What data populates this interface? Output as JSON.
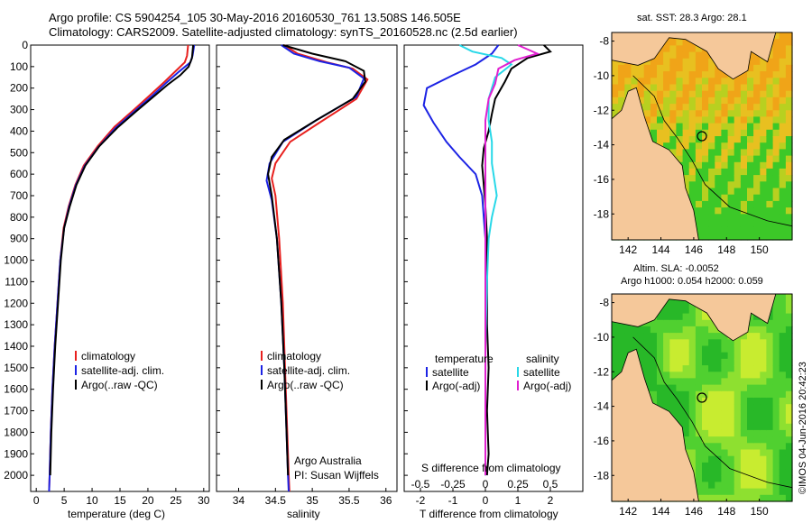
{
  "header": {
    "line1": "Argo profile: CS 5904254_105 30-May-2016 20160530_761 13.508S 146.505E",
    "line2": "Climatology: CARS2009. Satellite-adjusted climatology: synTS_20160528.nc (2.5d earlier)"
  },
  "colors": {
    "climatology": "#e8201e",
    "satellite": "#1c23e4",
    "argo": "#000000",
    "sat_s": "#28d8e8",
    "argo_s": "#e020d0",
    "land": "#f5c89a"
  },
  "chart_data": [
    {
      "type": "line",
      "xlabel": "temperature (deg C)",
      "xlim": [
        -1,
        31
      ],
      "xticks": [
        0,
        5,
        10,
        15,
        20,
        25,
        30
      ],
      "ylim": [
        2075,
        0
      ],
      "yticks": [
        0,
        100,
        200,
        300,
        400,
        500,
        600,
        700,
        800,
        900,
        1000,
        1100,
        1200,
        1300,
        1400,
        1500,
        1600,
        1700,
        1800,
        1900,
        2000
      ],
      "legend": [
        "climatology",
        "satellite-adj. clim.",
        "Argo(..raw -QC)"
      ],
      "legend_colors": [
        "#e8201e",
        "#1c23e4",
        "#000000"
      ],
      "series": [
        {
          "name": "climatology",
          "color": "#e8201e",
          "points": [
            [
              27.2,
              0
            ],
            [
              27.0,
              50
            ],
            [
              26.6,
              80
            ],
            [
              25.0,
              120
            ],
            [
              23.0,
              170
            ],
            [
              20.5,
              230
            ],
            [
              17.5,
              300
            ],
            [
              14.0,
              380
            ],
            [
              11.0,
              470
            ],
            [
              8.5,
              560
            ],
            [
              7.0,
              650
            ],
            [
              5.8,
              750
            ],
            [
              4.9,
              850
            ],
            [
              4.3,
              1000
            ],
            [
              3.8,
              1200
            ],
            [
              3.3,
              1400
            ],
            [
              2.9,
              1600
            ],
            [
              2.6,
              1800
            ],
            [
              2.4,
              2000
            ],
            [
              2.3,
              2075
            ]
          ]
        },
        {
          "name": "satellite-adj. clim.",
          "color": "#1c23e4",
          "points": [
            [
              28.3,
              0
            ],
            [
              28.0,
              50
            ],
            [
              27.6,
              80
            ],
            [
              25.5,
              125
            ],
            [
              23.3,
              175
            ],
            [
              20.8,
              235
            ],
            [
              17.7,
              305
            ],
            [
              14.2,
              385
            ],
            [
              11.1,
              475
            ],
            [
              8.7,
              560
            ],
            [
              7.1,
              650
            ],
            [
              5.9,
              750
            ],
            [
              5.0,
              850
            ],
            [
              4.3,
              1000
            ],
            [
              3.8,
              1200
            ],
            [
              3.3,
              1400
            ],
            [
              2.9,
              1600
            ],
            [
              2.6,
              1800
            ],
            [
              2.4,
              2000
            ],
            [
              2.3,
              2075
            ]
          ]
        },
        {
          "name": "Argo(..raw -QC)",
          "color": "#000000",
          "points": [
            [
              28.1,
              0
            ],
            [
              27.9,
              60
            ],
            [
              27.3,
              100
            ],
            [
              25.8,
              140
            ],
            [
              23.5,
              185
            ],
            [
              21.0,
              240
            ],
            [
              18.0,
              305
            ],
            [
              14.5,
              385
            ],
            [
              11.3,
              470
            ],
            [
              8.8,
              560
            ],
            [
              7.2,
              650
            ],
            [
              6.0,
              750
            ],
            [
              5.0,
              850
            ],
            [
              4.4,
              1000
            ],
            [
              3.9,
              1200
            ],
            [
              3.4,
              1400
            ],
            [
              3.0,
              1600
            ],
            [
              2.7,
              1800
            ],
            [
              2.5,
              2000
            ]
          ]
        }
      ]
    },
    {
      "type": "line",
      "xlabel": "salinity",
      "xlim": [
        33.7,
        36.15
      ],
      "xticks": [
        34,
        34.5,
        35,
        35.5,
        36
      ],
      "ylim": [
        2075,
        0
      ],
      "legend": [
        "climatology",
        "satellite-adj. clim.",
        "Argo(..raw -QC)"
      ],
      "legend_colors": [
        "#e8201e",
        "#1c23e4",
        "#000000"
      ],
      "annotation": [
        "Argo Australia",
        "PI: Susan Wijffels"
      ],
      "series": [
        {
          "name": "climatology",
          "color": "#e8201e",
          "points": [
            [
              34.62,
              0
            ],
            [
              34.8,
              40
            ],
            [
              35.2,
              80
            ],
            [
              35.55,
              110
            ],
            [
              35.75,
              160
            ],
            [
              35.6,
              250
            ],
            [
              35.1,
              360
            ],
            [
              34.7,
              450
            ],
            [
              34.5,
              550
            ],
            [
              34.45,
              620
            ],
            [
              34.5,
              700
            ],
            [
              34.55,
              900
            ],
            [
              34.6,
              1200
            ],
            [
              34.63,
              1500
            ],
            [
              34.66,
              1800
            ],
            [
              34.68,
              2000
            ],
            [
              34.69,
              2075
            ]
          ]
        },
        {
          "name": "satellite-adj. clim.",
          "color": "#1c23e4",
          "points": [
            [
              34.58,
              0
            ],
            [
              34.75,
              40
            ],
            [
              35.1,
              75
            ],
            [
              35.5,
              105
            ],
            [
              35.7,
              155
            ],
            [
              35.6,
              240
            ],
            [
              35.05,
              350
            ],
            [
              34.6,
              450
            ],
            [
              34.42,
              550
            ],
            [
              34.38,
              630
            ],
            [
              34.45,
              720
            ],
            [
              34.52,
              900
            ],
            [
              34.58,
              1200
            ],
            [
              34.62,
              1500
            ],
            [
              34.65,
              1800
            ],
            [
              34.67,
              2000
            ],
            [
              34.68,
              2075
            ]
          ]
        },
        {
          "name": "Argo(..raw -QC)",
          "color": "#000000",
          "points": [
            [
              34.6,
              0
            ],
            [
              35.0,
              40
            ],
            [
              35.45,
              75
            ],
            [
              35.7,
              120
            ],
            [
              35.72,
              170
            ],
            [
              35.55,
              250
            ],
            [
              35.05,
              350
            ],
            [
              34.62,
              440
            ],
            [
              34.45,
              520
            ],
            [
              34.4,
              600
            ],
            [
              34.45,
              700
            ],
            [
              34.52,
              900
            ],
            [
              34.58,
              1200
            ],
            [
              34.62,
              1500
            ],
            [
              34.65,
              1800
            ],
            [
              34.67,
              2000
            ]
          ]
        }
      ]
    },
    {
      "type": "line",
      "xlabel": "T difference from climatology",
      "xlabel2": "S difference from climatology",
      "xlim": [
        -2.5,
        3.0
      ],
      "xticks": [
        -2,
        -1,
        0,
        1,
        2
      ],
      "xticks_top_labels": [
        "-0.5",
        "-0.25",
        "0",
        "0.25",
        "0.5"
      ],
      "ylim": [
        2075,
        0
      ],
      "legend_left": [
        "temperature",
        "satellite",
        "Argo(-adj)"
      ],
      "legend_right": [
        "salinity",
        "satellite",
        "Argo(-adj)"
      ],
      "series": [
        {
          "name": "satellite",
          "color": "#1c23e4",
          "points": [
            [
              0.4,
              0
            ],
            [
              0.2,
              40
            ],
            [
              -0.3,
              90
            ],
            [
              -1.0,
              140
            ],
            [
              -1.8,
              200
            ],
            [
              -1.9,
              280
            ],
            [
              -1.6,
              360
            ],
            [
              -1.2,
              450
            ],
            [
              -0.8,
              520
            ],
            [
              -0.3,
              600
            ],
            [
              -0.1,
              700
            ],
            [
              0,
              900
            ],
            [
              0,
              1200
            ],
            [
              0,
              2000
            ]
          ]
        },
        {
          "name": "Argo(-adj)",
          "color": "#000000",
          "points": [
            [
              1.8,
              0
            ],
            [
              2.0,
              30
            ],
            [
              1.3,
              60
            ],
            [
              0.8,
              110
            ],
            [
              0.6,
              170
            ],
            [
              0.3,
              250
            ],
            [
              0.2,
              320
            ],
            [
              0.1,
              400
            ],
            [
              -0.05,
              480
            ],
            [
              -0.1,
              560
            ],
            [
              -0.05,
              650
            ],
            [
              0,
              750
            ],
            [
              0.05,
              900
            ],
            [
              0.05,
              1100
            ],
            [
              0.05,
              1300
            ],
            [
              0.1,
              1500
            ],
            [
              0.05,
              1700
            ],
            [
              0.1,
              1900
            ],
            [
              0.05,
              2000
            ]
          ]
        },
        {
          "name": "satellite",
          "color": "#28d8e8",
          "points": [
            [
              -0.8,
              0
            ],
            [
              -0.4,
              30
            ],
            [
              0.5,
              60
            ],
            [
              0.8,
              90
            ],
            [
              0.3,
              150
            ],
            [
              0.1,
              250
            ],
            [
              0.1,
              350
            ],
            [
              0.2,
              450
            ],
            [
              0.2,
              550
            ],
            [
              0.3,
              650
            ],
            [
              0.35,
              700
            ],
            [
              0.2,
              800
            ],
            [
              0.1,
              900
            ],
            [
              0.05,
              1100
            ],
            [
              0,
              1400
            ],
            [
              0,
              2000
            ]
          ]
        },
        {
          "name": "Argo(-adj)",
          "color": "#e020d0",
          "points": [
            [
              1.0,
              0
            ],
            [
              1.6,
              40
            ],
            [
              0.9,
              70
            ],
            [
              0.4,
              110
            ],
            [
              0.3,
              180
            ],
            [
              0.1,
              250
            ],
            [
              0.0,
              350
            ],
            [
              0.0,
              500
            ],
            [
              0.0,
              700
            ],
            [
              0.0,
              1000
            ],
            [
              0.0,
              1500
            ],
            [
              0.0,
              2000
            ]
          ]
        }
      ]
    }
  ],
  "maps": [
    {
      "title": "sat. SST: 28.3 Argo: 28.1",
      "xticks": [
        "142",
        "144",
        "146",
        "148",
        "150"
      ],
      "yticks": [
        "-8",
        "-10",
        "-12",
        "-14",
        "-16",
        "-18"
      ],
      "lon": [
        141,
        152
      ],
      "lat": [
        -19.5,
        -7.5
      ],
      "float_lon": 146.5,
      "float_lat": -13.5
    },
    {
      "title_line1": "Altim. SLA: -0.0052",
      "title_line2": "Argo h1000: 0.054 h2000: 0.059",
      "xticks": [
        "142",
        "144",
        "146",
        "148",
        "150"
      ],
      "yticks": [
        "-8",
        "-10",
        "-12",
        "-14",
        "-16",
        "-18"
      ],
      "lon": [
        141,
        152
      ],
      "lat": [
        -19.5,
        -7.5
      ],
      "float_lon": 146.5,
      "float_lat": -13.5
    }
  ],
  "footer": {
    "stamp": "©IMOS 04-Jun-2016 20:42:23"
  }
}
